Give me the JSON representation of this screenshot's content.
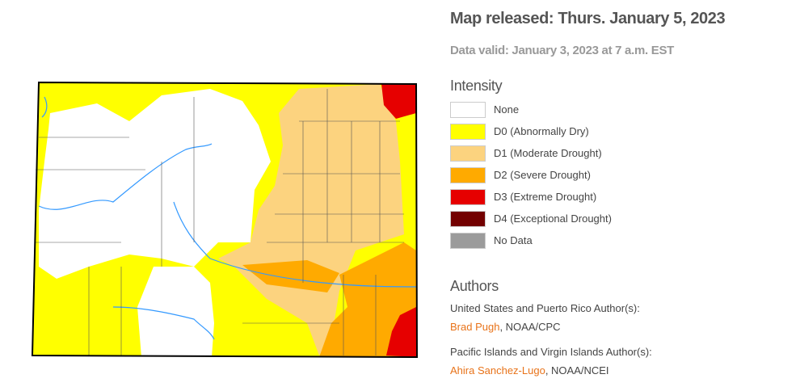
{
  "header": {
    "title": "Map released: Thurs. January 5, 2023",
    "subtitle": "Data valid: January 3, 2023 at 7 a.m. EST"
  },
  "legend": {
    "title": "Intensity",
    "items": [
      {
        "label": "None",
        "color": "#ffffff"
      },
      {
        "label": "D0 (Abnormally Dry)",
        "color": "#ffff00"
      },
      {
        "label": "D1 (Moderate Drought)",
        "color": "#fcd37f"
      },
      {
        "label": "D2 (Severe Drought)",
        "color": "#ffaa00"
      },
      {
        "label": "D3 (Extreme Drought)",
        "color": "#e60000"
      },
      {
        "label": "D4 (Exceptional Drought)",
        "color": "#730000"
      },
      {
        "label": "No Data",
        "color": "#9b9b9b"
      }
    ]
  },
  "authors": {
    "title": "Authors",
    "groups": [
      {
        "heading": "United States and Puerto Rico Author(s):",
        "name": "Brad Pugh",
        "affiliation": ", NOAA/CPC"
      },
      {
        "heading": "Pacific Islands and Virgin Islands Author(s):",
        "name": "Ahira Sanchez-Lugo",
        "affiliation": ", NOAA/NCEI"
      }
    ]
  }
}
